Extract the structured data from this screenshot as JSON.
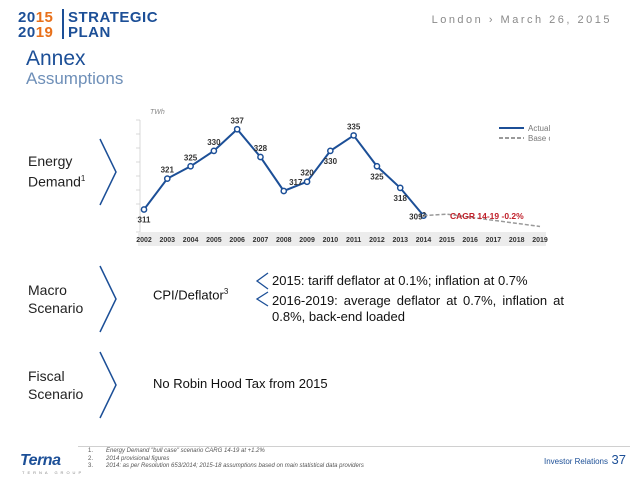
{
  "header": {
    "logo_year_top": "2015",
    "logo_year_top_a": "20",
    "logo_year_top_b": "15",
    "logo_year_bottom_a": "20",
    "logo_year_bottom_b": "19",
    "logo_word_top": "STRATEGIC",
    "logo_word_bottom": "PLAN",
    "location_date": "London › March 26, 2015"
  },
  "page": {
    "title": "Annex",
    "subtitle": "Assumptions"
  },
  "sections": {
    "energy": {
      "label_line1": "Energy",
      "label_line2": "Demand",
      "label_sup": "1"
    },
    "macro": {
      "label_line1": "Macro",
      "label_line2": "Scenario"
    },
    "fiscal": {
      "label_line1": "Fiscal",
      "label_line2": "Scenario"
    }
  },
  "macro_content": {
    "cpi_label": "CPI/Deflator",
    "cpi_sup": "3",
    "bullet1": "2015: tariff deflator at 0.1%; inflation at 0.7%",
    "bullet2": "2016-2019: average deflator at 0.7%, inflation at 0.8%, back-end loaded"
  },
  "fiscal_content": {
    "text": "No Robin Hood Tax from 2015"
  },
  "chart_data": {
    "type": "line",
    "ylabel": "TWh",
    "categories": [
      "2002",
      "2003",
      "2004",
      "2005",
      "2006",
      "2007",
      "2008",
      "2009",
      "2010",
      "2011",
      "2012",
      "2013",
      "2014",
      "2015",
      "2016",
      "2017",
      "2018",
      "2019"
    ],
    "series": [
      {
        "name": "Actual",
        "values": [
          311,
          321,
          325,
          330,
          337,
          328,
          317,
          320,
          330,
          335,
          325,
          318,
          309,
          null,
          null,
          null,
          null,
          null
        ]
      },
      {
        "name": "Base case",
        "values": [
          null,
          null,
          null,
          null,
          null,
          null,
          null,
          null,
          null,
          null,
          null,
          null,
          309,
          309.5,
          308.5,
          307.5,
          306.5,
          305.5
        ]
      }
    ],
    "data_labels": [
      "311",
      "321",
      "325",
      "330",
      "337",
      "328",
      "317",
      "320",
      "330",
      "335",
      "325",
      "318",
      "309"
    ],
    "label_2014_sup": "2",
    "annotation": "CAGR 14-19 -0.2%",
    "legend": [
      "Actual",
      "Base case"
    ],
    "ylim": [
      305,
      340
    ],
    "colors": {
      "actual": "#1c4f97",
      "base": "#9a9a9a",
      "annotation": "#c0202a"
    }
  },
  "footer": {
    "footnotes": [
      {
        "n": "1.",
        "text": "Energy Demand \"bull case\" scenario CARG 14-19 at +1.2%"
      },
      {
        "n": "2.",
        "text": "2014 provisional figures"
      },
      {
        "n": "3.",
        "text": "2014: as per Resolution 653/2014; 2015-18 assumptions based on main statistical data providers"
      }
    ],
    "company": "Terna",
    "company_sub": "TERNA GROUP",
    "investor_relations": "Investor Relations",
    "page_number": "37"
  }
}
